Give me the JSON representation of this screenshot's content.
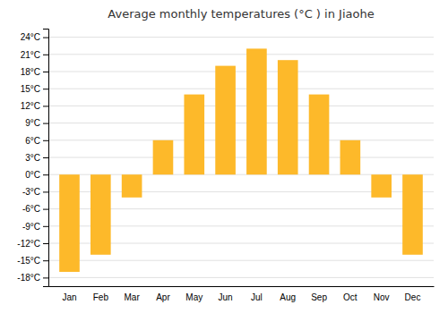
{
  "chart_data": {
    "type": "bar",
    "title": "Average monthly temperatures (°C ) in Jiaohe",
    "categories": [
      "Jan",
      "Feb",
      "Mar",
      "Apr",
      "May",
      "Jun",
      "Jul",
      "Aug",
      "Sep",
      "Oct",
      "Nov",
      "Dec"
    ],
    "values": [
      -17,
      -14,
      -4,
      6,
      14,
      19,
      22,
      20,
      14,
      6,
      -4,
      -14
    ],
    "color": "#FDB92A",
    "ylim": [
      -19.5,
      25.5
    ],
    "yticks": [
      {
        "value": -18,
        "label": "-18°C"
      },
      {
        "value": -15,
        "label": "-15°C"
      },
      {
        "value": -12,
        "label": "-12°C"
      },
      {
        "value": -9,
        "label": "-9°C"
      },
      {
        "value": -6,
        "label": "-6°C"
      },
      {
        "value": -3,
        "label": "-3°C"
      },
      {
        "value": 0,
        "label": "0°C"
      },
      {
        "value": 3,
        "label": "3°C"
      },
      {
        "value": 6,
        "label": "6°C"
      },
      {
        "value": 9,
        "label": "9°C"
      },
      {
        "value": 12,
        "label": "12°C"
      },
      {
        "value": 15,
        "label": "15°C"
      },
      {
        "value": 18,
        "label": "18°C"
      },
      {
        "value": 21,
        "label": "21°C"
      },
      {
        "value": 24,
        "label": "24°C"
      }
    ],
    "grid": true
  }
}
